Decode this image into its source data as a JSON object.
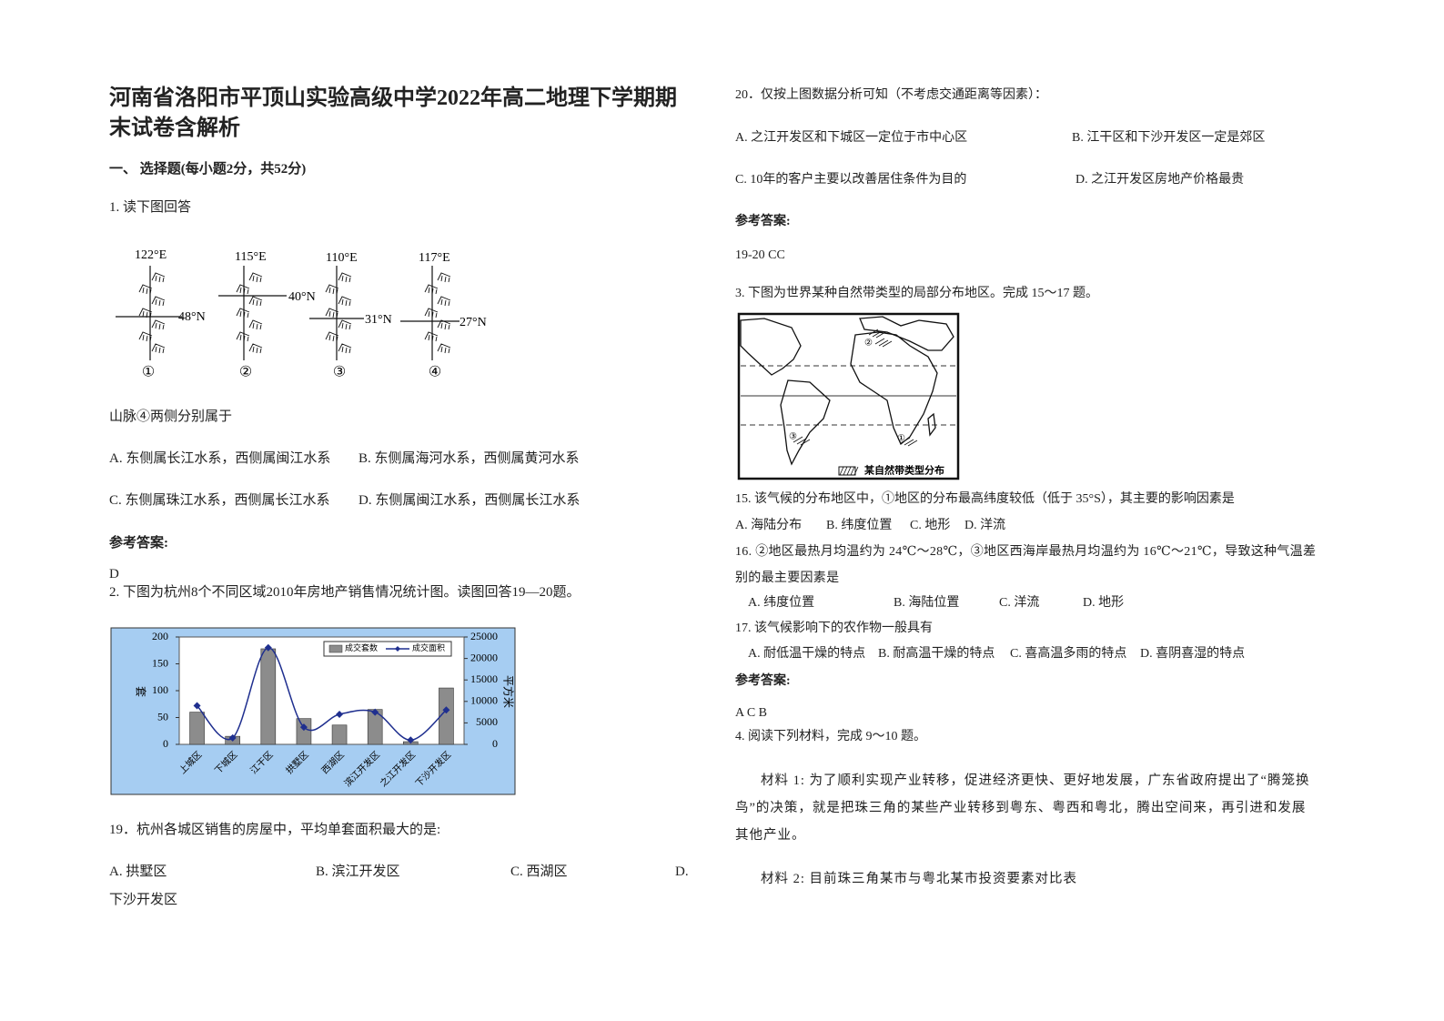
{
  "title": "河南省洛阳市平顶山实验高级中学2022年高二地理下学期期末试卷含解析",
  "section": "一、 选择题(每小题2分，共52分)",
  "q1": {
    "stem": "1. 读下图回答",
    "figure": {
      "diagrams": [
        {
          "lon": "122°E",
          "lat": "48°N",
          "no": "①"
        },
        {
          "lon": "115°E",
          "lat": "40°N",
          "no": "②"
        },
        {
          "lon": "110°E",
          "lat": "31°N",
          "no": "③"
        },
        {
          "lon": "117°E",
          "lat": "27°N",
          "no": "④"
        }
      ]
    },
    "question": "山脉④两侧分别属于",
    "options": [
      "A. 东侧属长江水系，西侧属闽江水系",
      "B. 东侧属海河水系，西侧属黄河水系",
      "C. 东侧属珠江水系，西侧属长江水系",
      "D. 东侧属闽江水系，西侧属长江水系"
    ],
    "answer_label": "参考答案:",
    "answer": "D"
  },
  "q2": {
    "stem": "2. 下图为杭州8个不同区域2010年房地产销售情况统计图。读图回答19—20题。",
    "chart": {
      "type": "bar-line",
      "categories": [
        "上城区",
        "下城区",
        "江干区",
        "拱墅区",
        "西湖区",
        "滨江开发区",
        "之江开发区",
        "下沙开发区"
      ],
      "series": [
        {
          "name": "成交套数",
          "color": "#8c8c8c",
          "values": [
            60,
            15,
            178,
            48,
            36,
            65,
            5,
            105
          ]
        },
        {
          "name": "成交面积",
          "color": "#1f2f8f",
          "axis": "y2",
          "values": [
            9000,
            1500,
            22500,
            4000,
            7000,
            7500,
            1000,
            8000
          ]
        }
      ],
      "ylabel": "套",
      "y2label": "平方米",
      "ylim": [
        0,
        200
      ],
      "yticks": [
        0,
        50,
        100,
        150,
        200
      ],
      "y2lim": [
        0,
        25000
      ],
      "y2ticks": [
        0,
        5000,
        10000,
        15000,
        20000,
        25000
      ]
    },
    "q19": {
      "stem": "19．杭州各城区销售的房屋中，平均单套面积最大的是:",
      "options": [
        "A. 拱墅区",
        "B. 滨江开发区",
        "C. 西湖区",
        "D."
      ],
      "option_d_cont": "下沙开发区"
    },
    "q20": {
      "stem": "20．仅按上图数据分析可知（不考虑交通距离等因素）：",
      "options": [
        "A. 之江开发区和下城区一定位于市中心区",
        "B. 江干区和下沙开发区一定是郊区",
        "C. 10年的客户主要以改善居住条件为目的",
        "D. 之江开发区房地产价格最贵"
      ]
    },
    "answer_label": "参考答案:",
    "answer": "19-20 CC"
  },
  "q3": {
    "stem": "3. 下图为世界某种自然带类型的局部分布地区。完成 15～17 题。",
    "map": {
      "labels": [
        "②",
        "③",
        "①"
      ],
      "legend": "某自然带类型分布"
    },
    "q15": {
      "stem": "15. 该气候的分布地区中，①地区的分布最高纬度较低（低于 35°S），其主要的影响因素是",
      "options": [
        "A. 海陆分布",
        "B. 纬度位置",
        "C. 地形",
        "D. 洋流"
      ]
    },
    "q16": {
      "stem": "16. ②地区最热月均温约为 24℃～28℃，③地区西海岸最热月均温约为 16℃～21℃，导致这种气温差别的最主要因素是",
      "options": [
        "A. 纬度位置",
        "B. 海陆位置",
        "C. 洋流",
        "D. 地形"
      ]
    },
    "q17": {
      "stem": "17. 该气候影响下的农作物一般具有",
      "options": [
        "A. 耐低温干燥的特点",
        "B. 耐高温干燥的特点",
        "C. 喜高温多雨的特点",
        "D. 喜阴喜湿的特点"
      ]
    },
    "answer_label": "参考答案:",
    "answer": "A C B"
  },
  "q4": {
    "stem": "4. 阅读下列材料，完成 9～10 题。",
    "material1": "材料 1: 为了顺利实现产业转移，促进经济更快、更好地发展，广东省政府提出了“腾笼换鸟”的决策，就是把珠三角的某些产业转移到粤东、粤西和粤北，腾出空间来，再引进和发展其他产业。",
    "material2": "材料 2: 目前珠三角某市与粤北某市投资要素对比表"
  }
}
